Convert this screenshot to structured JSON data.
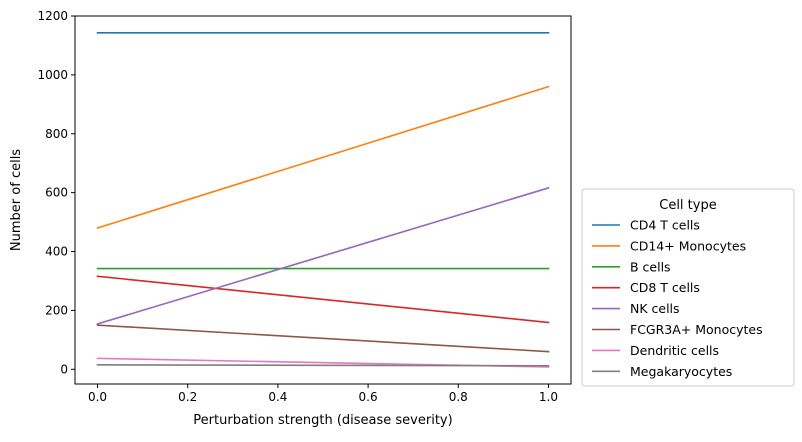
{
  "chart_data": {
    "type": "line",
    "title": "",
    "xlabel": "Perturbation strength (disease severity)",
    "ylabel": "Number of cells",
    "xlim": [
      -0.05,
      1.05
    ],
    "ylim": [
      -50,
      1200
    ],
    "xticks": [
      "0.0",
      "0.2",
      "0.4",
      "0.6",
      "0.8",
      "1.0"
    ],
    "xtick_values": [
      0.0,
      0.2,
      0.4,
      0.6,
      0.8,
      1.0
    ],
    "yticks": [
      "0",
      "200",
      "400",
      "600",
      "800",
      "1000",
      "1200"
    ],
    "ytick_values": [
      0,
      200,
      400,
      600,
      800,
      1000,
      1200
    ],
    "grid": false,
    "legend": {
      "title": "Cell type",
      "placement": "outside-right"
    },
    "x": [
      0.0,
      1.0
    ],
    "series": [
      {
        "name": "CD4 T cells",
        "color": "#1f77b4",
        "values": [
          1143,
          1143
        ]
      },
      {
        "name": "CD14+ Monocytes",
        "color": "#ff7f0e",
        "values": [
          480,
          960
        ]
      },
      {
        "name": "B cells",
        "color": "#2ca02c",
        "values": [
          342,
          342
        ]
      },
      {
        "name": "CD8 T cells",
        "color": "#d62728",
        "values": [
          316,
          159
        ]
      },
      {
        "name": "NK cells",
        "color": "#9467bd",
        "values": [
          154,
          616
        ]
      },
      {
        "name": "FCGR3A+ Monocytes",
        "color": "#8c564b",
        "values": [
          150,
          60
        ]
      },
      {
        "name": "Dendritic cells",
        "color": "#e377c2",
        "values": [
          37,
          8
        ]
      },
      {
        "name": "Megakaryocytes",
        "color": "#7f7f7f",
        "values": [
          15,
          12
        ]
      }
    ]
  }
}
